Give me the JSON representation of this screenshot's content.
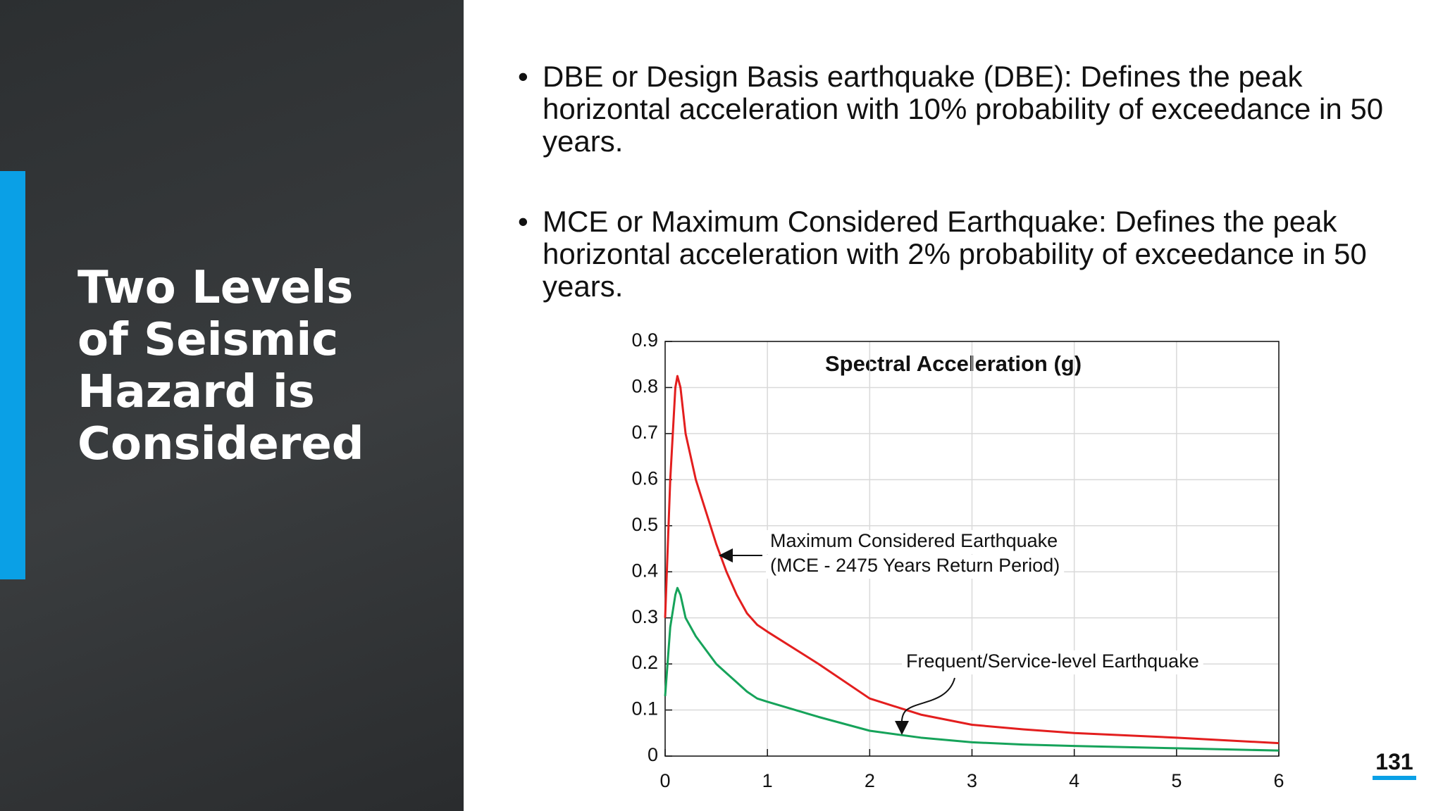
{
  "title": "Two Levels of Seismic Hazard is Considered",
  "bullets": [
    "DBE or Design Basis earthquake (DBE): Defines the peak horizontal acceleration with 10% probability of exceedance in 50 years.",
    "MCE or Maximum Considered Earthquake: Defines the peak horizontal acceleration with 2% probability of exceedance in 50 years."
  ],
  "page_number": "131",
  "chart_data": {
    "type": "line",
    "title": "Spectral Acceleration (g)",
    "x": [
      0,
      0.05,
      0.1,
      0.12,
      0.15,
      0.2,
      0.3,
      0.4,
      0.5,
      0.6,
      0.7,
      0.8,
      0.9,
      1,
      1.5,
      2,
      2.5,
      3,
      3.5,
      4,
      5,
      6
    ],
    "series": [
      {
        "color": "#e31e1e",
        "values": [
          0.3,
          0.6,
          0.8,
          0.825,
          0.8,
          0.7,
          0.6,
          0.53,
          0.46,
          0.4,
          0.35,
          0.31,
          0.285,
          0.27,
          0.2,
          0.125,
          0.09,
          0.068,
          0.058,
          0.05,
          0.04,
          0.028
        ]
      },
      {
        "color": "#16a35a",
        "values": [
          0.13,
          0.28,
          0.35,
          0.365,
          0.35,
          0.3,
          0.26,
          0.23,
          0.2,
          0.18,
          0.16,
          0.14,
          0.125,
          0.118,
          0.085,
          0.055,
          0.04,
          0.03,
          0.025,
          0.022,
          0.017,
          0.012
        ]
      }
    ],
    "annotations": [
      [
        "Maximum Considered Earthquake",
        "(MCE - 2475 Years Return Period)"
      ],
      [
        "Frequent/Service-level Earthquake"
      ]
    ],
    "xlim": [
      0,
      6
    ],
    "xticks": [
      0,
      1,
      2,
      3,
      4,
      5,
      6
    ],
    "ylim": [
      0,
      0.9
    ],
    "yticks": [
      0,
      0.1,
      0.2,
      0.3,
      0.4,
      0.5,
      0.6,
      0.7,
      0.8,
      0.9
    ],
    "grid": true
  }
}
